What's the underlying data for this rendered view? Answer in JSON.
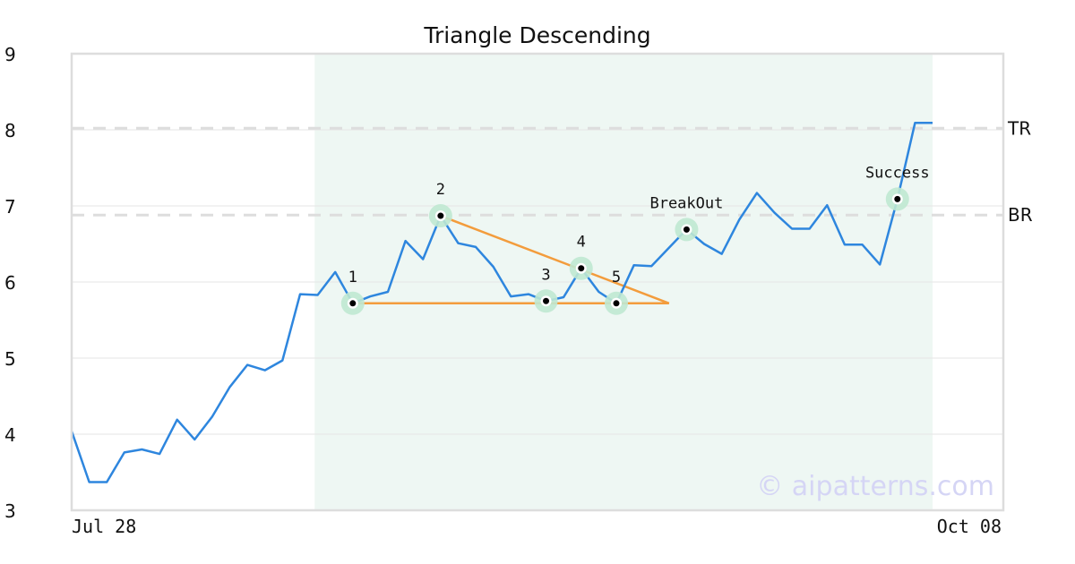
{
  "chart_data": {
    "type": "line",
    "title": "Triangle Descending",
    "ylim": [
      3,
      9
    ],
    "y_ticks": [
      "3",
      "4",
      "5",
      "6",
      "7",
      "8",
      "9"
    ],
    "x_labels": [
      "Jul 28",
      "Oct 08"
    ],
    "grid": "horizontal",
    "values": [
      4.04,
      3.37,
      3.37,
      3.76,
      3.8,
      3.74,
      4.19,
      3.93,
      4.23,
      4.62,
      4.91,
      4.84,
      4.97,
      5.84,
      5.83,
      6.13,
      5.72,
      5.81,
      5.87,
      6.54,
      6.3,
      6.87,
      6.51,
      6.46,
      6.2,
      5.81,
      5.84,
      5.75,
      5.8,
      6.18,
      5.87,
      5.72,
      6.22,
      6.21,
      6.45,
      6.69,
      6.5,
      6.37,
      6.82,
      7.17,
      6.91,
      6.7,
      6.7,
      7.01,
      6.49,
      6.49,
      6.23,
      7.09,
      8.09,
      8.09
    ],
    "highlight_range": [
      14,
      49
    ],
    "levels": [
      {
        "label": "TR",
        "value": 8.02
      },
      {
        "label": "BR",
        "value": 6.88
      }
    ],
    "pattern_points": [
      {
        "label": "1",
        "index": 16,
        "value": 5.72
      },
      {
        "label": "2",
        "index": 21,
        "value": 6.87
      },
      {
        "label": "3",
        "index": 27,
        "value": 5.75
      },
      {
        "label": "4",
        "index": 29,
        "value": 6.18
      },
      {
        "label": "5",
        "index": 31,
        "value": 5.72
      },
      {
        "label": "BreakOut",
        "index": 35,
        "value": 6.69
      },
      {
        "label": "Success",
        "index": 47,
        "value": 7.09
      }
    ],
    "triangle_lines": [
      {
        "from": [
          16,
          5.72
        ],
        "to": [
          34,
          5.72
        ]
      },
      {
        "from": [
          21,
          6.87
        ],
        "to": [
          34,
          5.72
        ]
      }
    ],
    "colors": {
      "series": "#2e86de",
      "triangle": "#f39c3c",
      "highlight": "#eef7f3",
      "marker_halo": "#bfe8d2",
      "level_line": "#dddddd",
      "watermark": "#d5d5f5"
    }
  },
  "watermark": "© aipatterns.com"
}
